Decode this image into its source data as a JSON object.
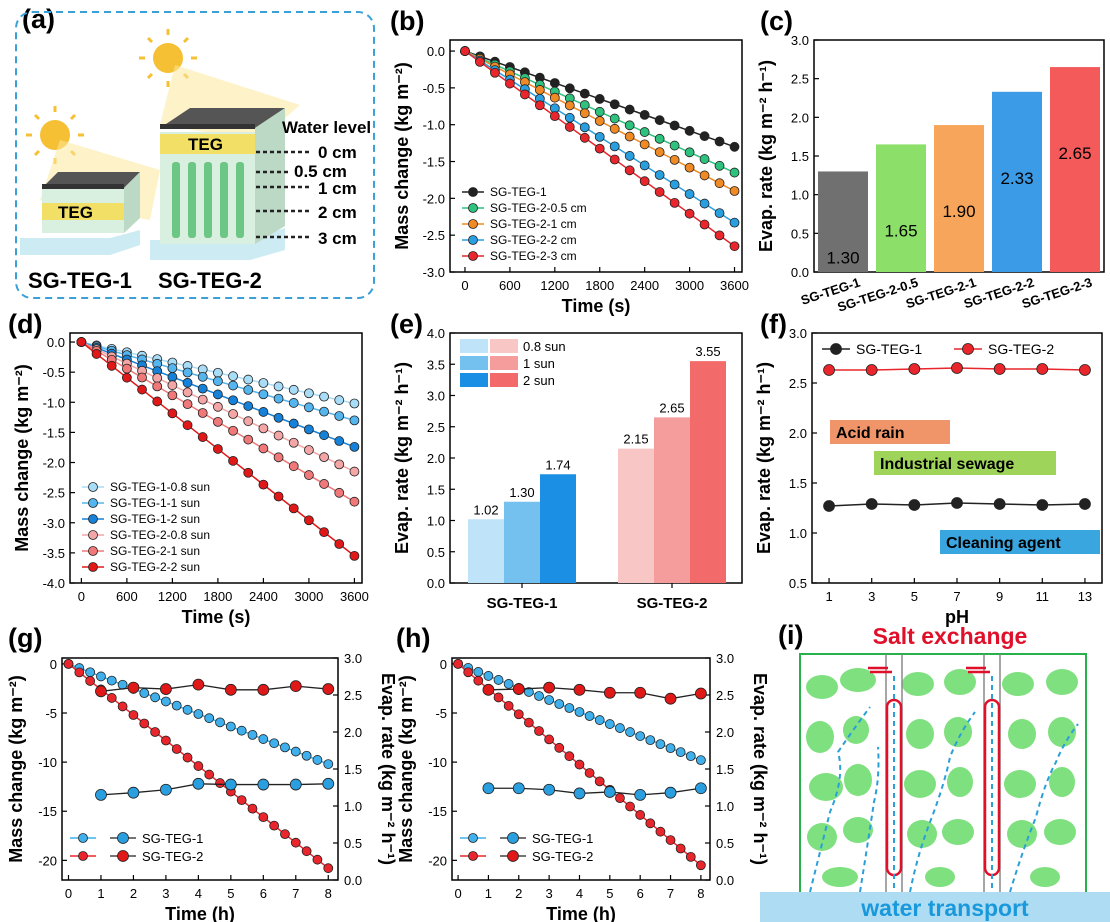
{
  "panel_labels": {
    "a": "(a)",
    "b": "(b)",
    "c": "(c)",
    "d": "(d)",
    "e": "(e)",
    "f": "(f)",
    "g": "(g)",
    "h": "(h)",
    "i": "(i)"
  },
  "schematic_a": {
    "teg_label": "TEG",
    "water_level_title": "Water level",
    "levels": [
      "0 cm",
      "0.5 cm",
      "1 cm",
      "2 cm",
      "3 cm"
    ],
    "sample1": "SG-TEG-1",
    "sample2": "SG-TEG-2"
  },
  "schematic_i": {
    "top_label": "Salt exchange",
    "bottom_label": "water transport",
    "colors": {
      "salt": "#e0102a",
      "water": "#2a9fd8",
      "particles": "#7fe07f"
    }
  },
  "chart_data": [
    {
      "id": "b",
      "type": "line",
      "xlabel": "Time (s)",
      "ylabel": "Mass change (kg m⁻²)",
      "xlim": [
        -200,
        3700
      ],
      "ylim": [
        -3.0,
        0.15
      ],
      "xticks": [
        0,
        600,
        1200,
        1800,
        2400,
        3000,
        3600
      ],
      "yticks": [
        0.0,
        -0.5,
        -1.0,
        -1.5,
        -2.0,
        -2.5,
        -3.0
      ],
      "ytick_labels": [
        "0.0",
        "-0.5",
        "-1.0",
        "-1.5",
        "-2.0",
        "-2.5",
        "-3.0"
      ],
      "x_start": 0,
      "x_step": 200,
      "x_end": 3600,
      "series": [
        {
          "name": "SG-TEG-1",
          "end": -1.3,
          "color": "#222222"
        },
        {
          "name": "SG-TEG-2-0.5 cm",
          "end": -1.65,
          "color": "#2ec27e"
        },
        {
          "name": "SG-TEG-2-1 cm",
          "end": -1.9,
          "color": "#f08a24"
        },
        {
          "name": "SG-TEG-2-2 cm",
          "end": -2.33,
          "color": "#2a9fe0"
        },
        {
          "name": "SG-TEG-2-3 cm",
          "end": -2.65,
          "color": "#e8262c"
        }
      ]
    },
    {
      "id": "c",
      "type": "bar",
      "ylabel": "Evap. rate (kg m⁻² h⁻¹)",
      "categories": [
        "SG-TEG-1",
        "SG-TEG-2-0.5",
        "SG-TEG-2-1",
        "SG-TEG-2-2",
        "SG-TEG-2-3"
      ],
      "values": [
        1.3,
        1.65,
        1.9,
        2.33,
        2.65
      ],
      "value_labels": [
        "1.30",
        "1.65",
        "1.90",
        "2.33",
        "2.65"
      ],
      "colors": [
        "#707070",
        "#8ce06a",
        "#f6a55a",
        "#3c9be6",
        "#f45a5a"
      ],
      "ylim": [
        0,
        3.0
      ],
      "yticks": [
        0.0,
        0.5,
        1.0,
        1.5,
        2.0,
        2.5,
        3.0
      ],
      "ytick_labels": [
        "0.0",
        "0.5",
        "1.0",
        "1.5",
        "2.0",
        "2.5",
        "3.0"
      ]
    },
    {
      "id": "d",
      "type": "line",
      "xlabel": "Time (s)",
      "ylabel": "Mass change (kg m⁻²)",
      "xlim": [
        -150,
        3700
      ],
      "ylim": [
        -4.0,
        0.15
      ],
      "xticks": [
        0,
        600,
        1200,
        1800,
        2400,
        3000,
        3600
      ],
      "yticks": [
        0.0,
        -0.5,
        -1.0,
        -1.5,
        -2.0,
        -2.5,
        -3.0,
        -3.5,
        -4.0
      ],
      "ytick_labels": [
        "0.0",
        "-0.5",
        "-1.0",
        "-1.5",
        "-2.0",
        "-2.5",
        "-3.0",
        "-3.5",
        "-4.0"
      ],
      "x_start": 0,
      "x_step": 200,
      "x_end": 3600,
      "series": [
        {
          "name": "SG-TEG-1-0.8 sun",
          "end": -1.02,
          "color": "#a9dcf7"
        },
        {
          "name": "SG-TEG-1-1 sun",
          "end": -1.3,
          "color": "#55b5ee"
        },
        {
          "name": "SG-TEG-1-2 sun",
          "end": -1.74,
          "color": "#1581d8"
        },
        {
          "name": "SG-TEG-2-0.8 sun",
          "end": -2.15,
          "color": "#f4a6a6"
        },
        {
          "name": "SG-TEG-2-1 sun",
          "end": -2.65,
          "color": "#f07878"
        },
        {
          "name": "SG-TEG-2-2 sun",
          "end": -3.55,
          "color": "#e01818"
        }
      ]
    },
    {
      "id": "e",
      "type": "bar",
      "ylabel": "Evap. rate (kg m⁻² h⁻¹)",
      "categories": [
        "SG-TEG-1",
        "SG-TEG-2"
      ],
      "series": [
        {
          "name": "0.8 sun",
          "values": [
            1.02,
            2.15
          ],
          "colors": [
            "#bfe3f8",
            "#f9c6c6"
          ]
        },
        {
          "name": "1 sun",
          "values": [
            1.3,
            2.65
          ],
          "colors": [
            "#74c0ef",
            "#f59c9c"
          ]
        },
        {
          "name": "2 sun",
          "values": [
            1.74,
            3.55
          ],
          "colors": [
            "#1a8fe3",
            "#f36a6a"
          ]
        }
      ],
      "value_labels": [
        [
          "1.02",
          "2.15"
        ],
        [
          "1.30",
          "2.65"
        ],
        [
          "1.74",
          "3.55"
        ]
      ],
      "ylim": [
        0,
        4.0
      ],
      "yticks": [
        0.0,
        0.5,
        1.0,
        1.5,
        2.0,
        2.5,
        3.0,
        3.5,
        4.0
      ],
      "ytick_labels": [
        "0.0",
        "0.5",
        "1.0",
        "1.5",
        "2.0",
        "2.5",
        "3.0",
        "3.5",
        "4.0"
      ]
    },
    {
      "id": "f",
      "type": "line",
      "xlabel": "pH",
      "ylabel": "Evap. rate (kg m⁻² h⁻¹)",
      "xlim": [
        0.2,
        13.8
      ],
      "ylim": [
        0.5,
        3.0
      ],
      "xticks": [
        1,
        3,
        5,
        7,
        9,
        11,
        13
      ],
      "yticks": [
        0.5,
        1.0,
        1.5,
        2.0,
        2.5,
        3.0
      ],
      "ytick_labels": [
        "0.5",
        "1.0",
        "1.5",
        "2.0",
        "2.5",
        "3.0"
      ],
      "x": [
        1,
        3,
        5,
        7,
        9,
        11,
        13
      ],
      "series": [
        {
          "name": "SG-TEG-1",
          "values": [
            1.27,
            1.29,
            1.28,
            1.3,
            1.29,
            1.28,
            1.29
          ],
          "color": "#222222"
        },
        {
          "name": "SG-TEG-2",
          "values": [
            2.63,
            2.63,
            2.64,
            2.65,
            2.64,
            2.64,
            2.63
          ],
          "color": "#e8262c"
        }
      ],
      "annotations": [
        {
          "text": "Acid rain",
          "color": "#f0956a"
        },
        {
          "text": "Industrial sewage",
          "color": "#9fd45a"
        },
        {
          "text": "Cleaning agent",
          "color": "#3aa6e0"
        }
      ]
    },
    {
      "id": "g",
      "type": "line",
      "xlabel": "Time (h)",
      "ylabel": "Mass change (kg m⁻²)",
      "ylabel2": "Evap. rate (kg m⁻² h⁻¹)",
      "xlim": [
        -0.2,
        8.3
      ],
      "ylim": [
        -22,
        0.6
      ],
      "ylim2": [
        0,
        3.0
      ],
      "xticks": [
        0,
        1,
        2,
        3,
        4,
        5,
        6,
        7,
        8
      ],
      "yticks": [
        0,
        -5,
        -10,
        -15,
        -20
      ],
      "ytick_labels": [
        "0",
        "-5",
        "-10",
        "-15",
        "-20"
      ],
      "yticks2": [
        0,
        0.5,
        1.0,
        1.5,
        2.0,
        2.5,
        3.0
      ],
      "ytick2_labels": [
        "0.0",
        "0.5",
        "1.0",
        "1.5",
        "2.0",
        "2.5",
        "3.0"
      ],
      "mass_series": [
        {
          "name": "SG-TEG-1",
          "end": -10.2,
          "color": "#3fb0ec"
        },
        {
          "name": "SG-TEG-2",
          "end": -20.8,
          "color": "#e8262c"
        }
      ],
      "rate_x": [
        1,
        2,
        3,
        4,
        5,
        6,
        7,
        8
      ],
      "rate_series": [
        {
          "name": "SG-TEG-1",
          "values": [
            1.15,
            1.18,
            1.22,
            1.3,
            1.29,
            1.29,
            1.29,
            1.3
          ],
          "color": "#2a9fe0"
        },
        {
          "name": "SG-TEG-2",
          "values": [
            2.55,
            2.6,
            2.58,
            2.64,
            2.57,
            2.57,
            2.62,
            2.58
          ],
          "color": "#e01818"
        }
      ]
    },
    {
      "id": "h",
      "type": "line",
      "xlabel": "Time (h)",
      "ylabel": "Mass change (kg m⁻²)",
      "ylabel2": "Evap. rate (kg m⁻² h⁻¹)",
      "xlim": [
        -0.2,
        8.3
      ],
      "ylim": [
        -22,
        0.6
      ],
      "ylim2": [
        0,
        3.0
      ],
      "xticks": [
        0,
        1,
        2,
        3,
        4,
        5,
        6,
        7,
        8
      ],
      "yticks": [
        0,
        -5,
        -10,
        -15,
        -20
      ],
      "ytick_labels": [
        "0",
        "-5",
        "-10",
        "-15",
        "-20"
      ],
      "yticks2": [
        0,
        0.5,
        1.0,
        1.5,
        2.0,
        2.5,
        3.0
      ],
      "ytick2_labels": [
        "0.0",
        "0.5",
        "1.0",
        "1.5",
        "2.0",
        "2.5",
        "3.0"
      ],
      "mass_series": [
        {
          "name": "SG-TEG-1",
          "end": -9.8,
          "color": "#3fb0ec"
        },
        {
          "name": "SG-TEG-2",
          "end": -20.5,
          "color": "#e8262c"
        }
      ],
      "rate_x": [
        1,
        2,
        3,
        4,
        5,
        6,
        7,
        8
      ],
      "rate_series": [
        {
          "name": "SG-TEG-1",
          "values": [
            1.24,
            1.24,
            1.22,
            1.17,
            1.19,
            1.15,
            1.18,
            1.24
          ],
          "color": "#2a9fe0"
        },
        {
          "name": "SG-TEG-2",
          "values": [
            2.57,
            2.58,
            2.6,
            2.57,
            2.53,
            2.53,
            2.45,
            2.52
          ],
          "color": "#e01818"
        }
      ]
    }
  ]
}
